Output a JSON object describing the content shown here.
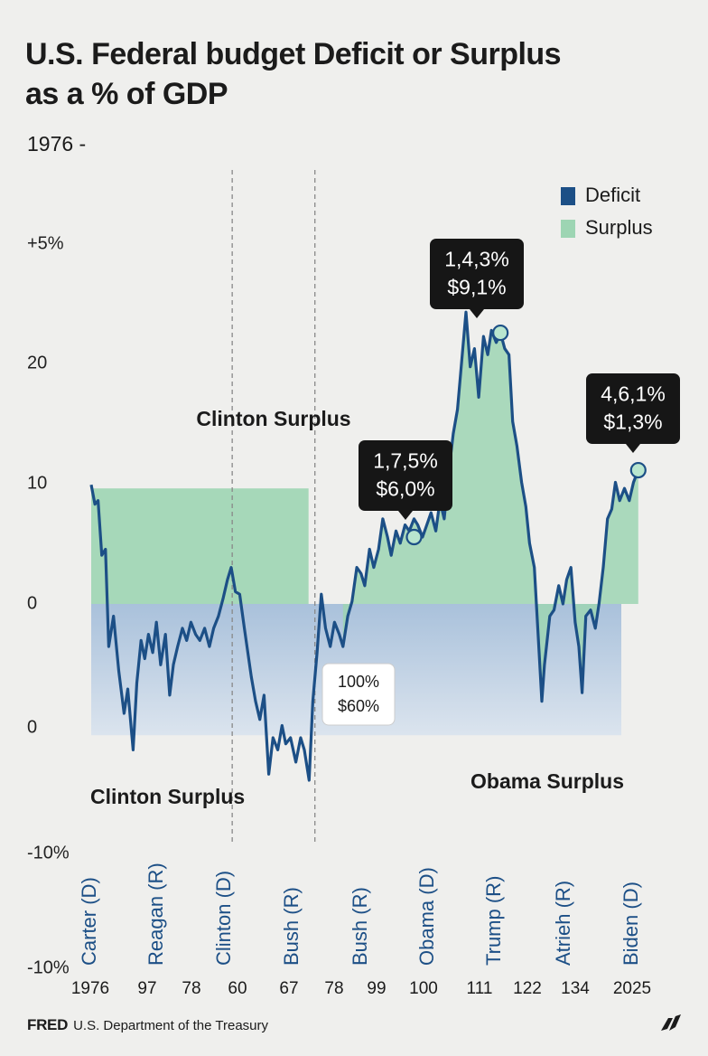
{
  "header": {
    "title": "U.S. Federal budget Deficit or Surplus as a % of GDP",
    "subtitle": "1976 -"
  },
  "footer": {
    "brand": "FRED",
    "source": "U.S. Department of the Treasury"
  },
  "colors": {
    "line": "#1c4f86",
    "surplus": "#9dd5b3",
    "deficit": "#a9c1db",
    "grid": "#888888"
  },
  "chart_data": {
    "type": "line",
    "title": "U.S. Federal budget Deficit or Surplus as a % of GDP",
    "legend": [
      {
        "label": "Deficit",
        "color": "#1c4f86"
      },
      {
        "label": "Surplus",
        "color": "#9dd5b3"
      }
    ],
    "legend_position": "top-right",
    "y_ticks": [
      "+5%",
      "20",
      "10",
      "0",
      "0",
      "-10%",
      "-10%"
    ],
    "x_ticks": [
      "1976",
      "97",
      "78",
      "60",
      "67",
      "78",
      "99",
      "100",
      "111",
      "122",
      "134",
      "2025"
    ],
    "presidents": [
      "Carter (D)",
      "Reagan (R)",
      "Clinton (D)",
      "Bush (R)",
      "Bush (R)",
      "Obama (D)",
      "Trump (R)",
      "Atrieh (R)",
      "Biden (D)"
    ],
    "region_labels": [
      "Clinton Surplus",
      "Clinton Surplus",
      "Obama Surplus"
    ],
    "x_range": [
      0,
      100
    ],
    "y_range": [
      -12,
      28
    ],
    "surplus_band": {
      "x": [
        0,
        41
      ],
      "y": [
        0,
        9.5
      ]
    },
    "deficit_band": {
      "x": [
        0,
        100
      ],
      "y": [
        -10.8,
        0
      ]
    },
    "surplus_area_start": 47,
    "series": [
      {
        "name": "Budget balance",
        "points": [
          [
            0,
            9.8
          ],
          [
            0.7,
            8.2
          ],
          [
            1.3,
            8.5
          ],
          [
            2,
            4
          ],
          [
            2.7,
            4.5
          ],
          [
            3.3,
            -3.5
          ],
          [
            4.2,
            -1
          ],
          [
            5.2,
            -5.5
          ],
          [
            6.2,
            -9
          ],
          [
            6.9,
            -7
          ],
          [
            7.9,
            -12
          ],
          [
            8.6,
            -6.5
          ],
          [
            9.4,
            -3
          ],
          [
            10.1,
            -4.5
          ],
          [
            10.8,
            -2.5
          ],
          [
            11.6,
            -4
          ],
          [
            12.3,
            -1.5
          ],
          [
            13.1,
            -5
          ],
          [
            14,
            -2.5
          ],
          [
            14.8,
            -7.5
          ],
          [
            15.5,
            -5
          ],
          [
            16.3,
            -3.5
          ],
          [
            17.2,
            -2
          ],
          [
            18,
            -3
          ],
          [
            18.8,
            -1.5
          ],
          [
            19.7,
            -2.5
          ],
          [
            20.5,
            -3
          ],
          [
            21.4,
            -2
          ],
          [
            22.3,
            -3.5
          ],
          [
            23.1,
            -2
          ],
          [
            24,
            -1
          ],
          [
            24.9,
            0.5
          ],
          [
            25.7,
            2
          ],
          [
            26.4,
            3
          ],
          [
            27.2,
            1
          ],
          [
            28,
            0.8
          ],
          [
            28.9,
            -2
          ],
          [
            30.2,
            -6
          ],
          [
            31,
            -8
          ],
          [
            31.8,
            -9.5
          ],
          [
            32.6,
            -7.5
          ],
          [
            33.5,
            -14
          ],
          [
            34.3,
            -11
          ],
          [
            35.2,
            -12
          ],
          [
            36,
            -10
          ],
          [
            36.7,
            -11.5
          ],
          [
            37.6,
            -11
          ],
          [
            38.6,
            -13
          ],
          [
            39.5,
            -11
          ],
          [
            40.2,
            -12
          ],
          [
            41.1,
            -14.5
          ],
          [
            41.8,
            -8
          ],
          [
            42.6,
            -4
          ],
          [
            43.4,
            0.8
          ],
          [
            44.2,
            -2
          ],
          [
            45.1,
            -3.5
          ],
          [
            45.9,
            -1.5
          ],
          [
            46.8,
            -2.5
          ],
          [
            47.5,
            -3.5
          ],
          [
            48.4,
            -1
          ],
          [
            49.2,
            0.2
          ],
          [
            50.1,
            3
          ],
          [
            50.9,
            2.5
          ],
          [
            51.6,
            1.5
          ],
          [
            52.5,
            4.5
          ],
          [
            53.3,
            3
          ],
          [
            54.2,
            4.5
          ],
          [
            55,
            7
          ],
          [
            55.9,
            5.5
          ],
          [
            56.6,
            4
          ],
          [
            57.5,
            6
          ],
          [
            58.3,
            5
          ],
          [
            59.2,
            6.5
          ],
          [
            60,
            6
          ],
          [
            60.9,
            7
          ],
          [
            61.6,
            6.5
          ],
          [
            62.5,
            5.5
          ],
          [
            63.3,
            6.5
          ],
          [
            64.1,
            7.5
          ],
          [
            65,
            6
          ],
          [
            65.8,
            8.5
          ],
          [
            66.6,
            7
          ],
          [
            67.5,
            11
          ],
          [
            68.3,
            14
          ],
          [
            69.1,
            16
          ],
          [
            69.9,
            20
          ],
          [
            70.7,
            24
          ],
          [
            71.5,
            19.5
          ],
          [
            72.3,
            21
          ],
          [
            73.1,
            17
          ],
          [
            74,
            22
          ],
          [
            74.8,
            20.5
          ],
          [
            75.5,
            22.5
          ],
          [
            76.4,
            21.5
          ],
          [
            77.2,
            22.3
          ],
          [
            78,
            21
          ],
          [
            78.8,
            20.5
          ],
          [
            79.5,
            15
          ],
          [
            80.3,
            13
          ],
          [
            81.2,
            10
          ],
          [
            82,
            8
          ],
          [
            82.7,
            5
          ],
          [
            83.6,
            3
          ],
          [
            84.5,
            -4
          ],
          [
            85,
            -8
          ],
          [
            85.5,
            -5
          ],
          [
            86.5,
            -1
          ],
          [
            87.3,
            -0.5
          ],
          [
            88.2,
            1.5
          ],
          [
            89,
            0
          ],
          [
            89.7,
            2
          ],
          [
            90.5,
            3
          ],
          [
            91.3,
            -1.5
          ],
          [
            92,
            -3.5
          ],
          [
            92.6,
            -7.3
          ],
          [
            93.3,
            -1
          ],
          [
            94.2,
            -0.5
          ],
          [
            95.1,
            -2
          ],
          [
            95.8,
            0
          ],
          [
            96.6,
            3
          ],
          [
            97.4,
            7
          ],
          [
            98.2,
            7.8
          ],
          [
            98.9,
            10
          ],
          [
            99.7,
            8.5
          ],
          [
            100.6,
            9.5
          ],
          [
            101.5,
            8.5
          ],
          [
            102.3,
            10
          ],
          [
            103.2,
            11
          ]
        ]
      }
    ],
    "callouts": [
      {
        "line1": "1,4,3%",
        "line2": "$9,1%",
        "x": 77.2,
        "y": 22.3
      },
      {
        "line1": "1,7,5%",
        "line2": "$6,0%",
        "x": 60.9,
        "y": 5.5
      },
      {
        "line1": "4,6,1%",
        "line2": "$1,3%",
        "x": 103.2,
        "y": 11
      },
      {
        "line1": "100%",
        "line2": "$60%"
      }
    ]
  }
}
